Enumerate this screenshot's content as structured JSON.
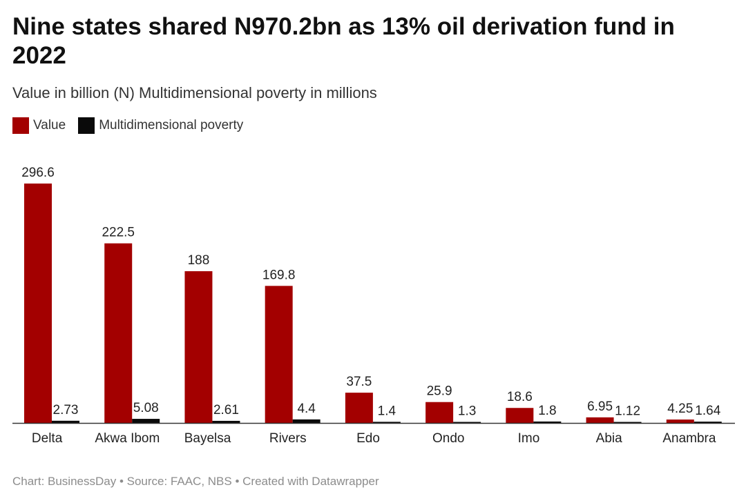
{
  "header": {
    "title": "Nine states shared N970.2bn as 13% oil derivation fund in 2022",
    "subtitle": "Value in billion (N) Multidimensional poverty in millions"
  },
  "legend": {
    "value_label": "Value",
    "poverty_label": "Multidimensional poverty"
  },
  "colors": {
    "value": "#a30000",
    "poverty": "#0a0a0a",
    "axis": "#333333"
  },
  "footer": {
    "text": "Chart: BusinessDay • Source: FAAC, NBS • Created with Datawrapper"
  },
  "chart_data": {
    "type": "bar",
    "title": "Nine states shared N970.2bn as 13% oil derivation fund in 2022",
    "categories": [
      "Delta",
      "Akwa Ibom",
      "Bayelsa",
      "Rivers",
      "Edo",
      "Ondo",
      "Imo",
      "Abia",
      "Anambra"
    ],
    "series": [
      {
        "name": "Value",
        "values": [
          296.6,
          222.5,
          188,
          169.8,
          37.5,
          25.9,
          18.6,
          6.95,
          4.25
        ],
        "labels": [
          "296.6",
          "222.5",
          "188",
          "169.8",
          "37.5",
          "25.9",
          "18.6",
          "6.95",
          "4.25"
        ]
      },
      {
        "name": "Multidimensional poverty",
        "values": [
          2.73,
          5.08,
          2.61,
          4.4,
          1.4,
          1.3,
          1.8,
          1.12,
          1.64
        ],
        "labels": [
          "2.73",
          "5.08",
          "2.61",
          "4.4",
          "1.4",
          "1.3",
          "1.8",
          "1.12",
          "1.64"
        ]
      }
    ],
    "ylim": [
      0,
      296.6
    ],
    "legend": "top-left",
    "grid": false
  }
}
